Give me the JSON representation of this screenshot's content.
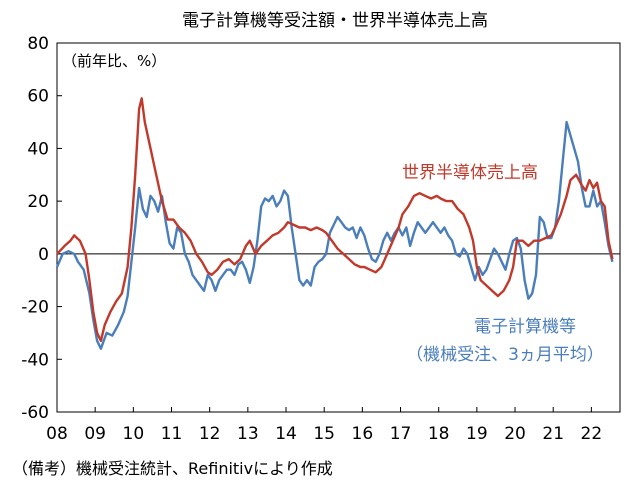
{
  "chart_data": {
    "type": "line",
    "title": "電子計算機等受注額・世界半導体売上高",
    "unit_label": "（前年比、%）",
    "source_note": "（備考）機械受注統計、Refinitivにより作成",
    "ylim": [
      -60,
      80
    ],
    "y_ticks": [
      "80",
      "60",
      "40",
      "20",
      "0",
      "-20",
      "-40",
      "-60"
    ],
    "y_tick_values": [
      80,
      60,
      40,
      20,
      0,
      -20,
      -40,
      -60
    ],
    "xlim": [
      2008.0,
      2022.75
    ],
    "x_ticks": [
      "08",
      "09",
      "10",
      "11",
      "12",
      "13",
      "14",
      "15",
      "16",
      "17",
      "18",
      "19",
      "20",
      "21",
      "22"
    ],
    "x_tick_values": [
      2008,
      2009,
      2010,
      2011,
      2012,
      2013,
      2014,
      2015,
      2016,
      2017,
      2018,
      2019,
      2020,
      2021,
      2022
    ],
    "grid": false,
    "series": [
      {
        "name": "電子計算機等",
        "label_lines": [
          "電子計算機等",
          "（機械受注、3ヵ月平均）"
        ],
        "color": "#4a7ebb",
        "points": [
          [
            2008.0,
            -5
          ],
          [
            2008.15,
            0
          ],
          [
            2008.3,
            1
          ],
          [
            2008.45,
            0
          ],
          [
            2008.55,
            -3
          ],
          [
            2008.7,
            -6
          ],
          [
            2008.85,
            -15
          ],
          [
            2008.95,
            -25
          ],
          [
            2009.05,
            -33
          ],
          [
            2009.15,
            -36
          ],
          [
            2009.3,
            -30
          ],
          [
            2009.45,
            -31
          ],
          [
            2009.6,
            -27
          ],
          [
            2009.75,
            -22
          ],
          [
            2009.85,
            -16
          ],
          [
            2009.95,
            -3
          ],
          [
            2010.05,
            10
          ],
          [
            2010.15,
            25
          ],
          [
            2010.25,
            17
          ],
          [
            2010.35,
            14
          ],
          [
            2010.45,
            22
          ],
          [
            2010.55,
            20
          ],
          [
            2010.65,
            16
          ],
          [
            2010.75,
            22
          ],
          [
            2010.85,
            12
          ],
          [
            2010.95,
            4
          ],
          [
            2011.05,
            2
          ],
          [
            2011.15,
            10
          ],
          [
            2011.25,
            8
          ],
          [
            2011.35,
            0
          ],
          [
            2011.45,
            -3
          ],
          [
            2011.55,
            -8
          ],
          [
            2011.65,
            -10
          ],
          [
            2011.75,
            -12
          ],
          [
            2011.85,
            -14
          ],
          [
            2011.95,
            -8
          ],
          [
            2012.05,
            -10
          ],
          [
            2012.15,
            -14
          ],
          [
            2012.25,
            -10
          ],
          [
            2012.35,
            -8
          ],
          [
            2012.45,
            -6
          ],
          [
            2012.55,
            -6
          ],
          [
            2012.65,
            -8
          ],
          [
            2012.75,
            -4
          ],
          [
            2012.85,
            -3
          ],
          [
            2012.95,
            -6
          ],
          [
            2013.05,
            -11
          ],
          [
            2013.15,
            -5
          ],
          [
            2013.25,
            5
          ],
          [
            2013.35,
            18
          ],
          [
            2013.45,
            21
          ],
          [
            2013.55,
            20
          ],
          [
            2013.65,
            22
          ],
          [
            2013.75,
            18
          ],
          [
            2013.85,
            20
          ],
          [
            2013.95,
            24
          ],
          [
            2014.05,
            22
          ],
          [
            2014.15,
            10
          ],
          [
            2014.25,
            0
          ],
          [
            2014.35,
            -10
          ],
          [
            2014.45,
            -12
          ],
          [
            2014.55,
            -10
          ],
          [
            2014.65,
            -12
          ],
          [
            2014.75,
            -5
          ],
          [
            2014.85,
            -3
          ],
          [
            2014.95,
            -2
          ],
          [
            2015.05,
            0
          ],
          [
            2015.15,
            8
          ],
          [
            2015.25,
            11
          ],
          [
            2015.35,
            14
          ],
          [
            2015.45,
            12
          ],
          [
            2015.55,
            10
          ],
          [
            2015.65,
            9
          ],
          [
            2015.75,
            10
          ],
          [
            2015.85,
            6
          ],
          [
            2015.95,
            10
          ],
          [
            2016.05,
            7
          ],
          [
            2016.15,
            2
          ],
          [
            2016.25,
            -2
          ],
          [
            2016.35,
            -3
          ],
          [
            2016.45,
            0
          ],
          [
            2016.55,
            5
          ],
          [
            2016.65,
            8
          ],
          [
            2016.75,
            5
          ],
          [
            2016.85,
            8
          ],
          [
            2016.95,
            10
          ],
          [
            2017.05,
            7
          ],
          [
            2017.15,
            10
          ],
          [
            2017.25,
            3
          ],
          [
            2017.35,
            8
          ],
          [
            2017.45,
            12
          ],
          [
            2017.55,
            10
          ],
          [
            2017.65,
            8
          ],
          [
            2017.75,
            10
          ],
          [
            2017.85,
            12
          ],
          [
            2017.95,
            10
          ],
          [
            2018.05,
            8
          ],
          [
            2018.15,
            10
          ],
          [
            2018.25,
            7
          ],
          [
            2018.35,
            5
          ],
          [
            2018.45,
            0
          ],
          [
            2018.55,
            -1
          ],
          [
            2018.65,
            2
          ],
          [
            2018.75,
            0
          ],
          [
            2018.85,
            -5
          ],
          [
            2018.95,
            -10
          ],
          [
            2019.05,
            -5
          ],
          [
            2019.15,
            -8
          ],
          [
            2019.25,
            -6
          ],
          [
            2019.35,
            -2
          ],
          [
            2019.45,
            2
          ],
          [
            2019.55,
            0
          ],
          [
            2019.65,
            -3
          ],
          [
            2019.75,
            -6
          ],
          [
            2019.85,
            0
          ],
          [
            2019.95,
            5
          ],
          [
            2020.05,
            6
          ],
          [
            2020.15,
            2
          ],
          [
            2020.25,
            -10
          ],
          [
            2020.35,
            -17
          ],
          [
            2020.45,
            -15
          ],
          [
            2020.55,
            -8
          ],
          [
            2020.65,
            14
          ],
          [
            2020.75,
            12
          ],
          [
            2020.85,
            6
          ],
          [
            2020.95,
            6
          ],
          [
            2021.05,
            10
          ],
          [
            2021.15,
            20
          ],
          [
            2021.25,
            35
          ],
          [
            2021.35,
            50
          ],
          [
            2021.45,
            45
          ],
          [
            2021.55,
            40
          ],
          [
            2021.65,
            35
          ],
          [
            2021.75,
            25
          ],
          [
            2021.85,
            18
          ],
          [
            2021.95,
            18
          ],
          [
            2022.05,
            24
          ],
          [
            2022.15,
            18
          ],
          [
            2022.25,
            20
          ],
          [
            2022.35,
            12
          ],
          [
            2022.45,
            3
          ],
          [
            2022.55,
            -3
          ]
        ]
      },
      {
        "name": "世界半導体売上高",
        "label_lines": [
          "世界半導体売上高"
        ],
        "color": "#c0392b",
        "points": [
          [
            2008.0,
            0
          ],
          [
            2008.2,
            3
          ],
          [
            2008.35,
            5
          ],
          [
            2008.45,
            7
          ],
          [
            2008.6,
            5
          ],
          [
            2008.75,
            0
          ],
          [
            2008.85,
            -10
          ],
          [
            2008.95,
            -22
          ],
          [
            2009.05,
            -30
          ],
          [
            2009.15,
            -33
          ],
          [
            2009.25,
            -27
          ],
          [
            2009.4,
            -22
          ],
          [
            2009.55,
            -18
          ],
          [
            2009.7,
            -15
          ],
          [
            2009.85,
            -5
          ],
          [
            2009.95,
            10
          ],
          [
            2010.05,
            30
          ],
          [
            2010.15,
            55
          ],
          [
            2010.22,
            59
          ],
          [
            2010.3,
            50
          ],
          [
            2010.45,
            40
          ],
          [
            2010.6,
            30
          ],
          [
            2010.75,
            20
          ],
          [
            2010.9,
            13
          ],
          [
            2011.05,
            13
          ],
          [
            2011.2,
            10
          ],
          [
            2011.35,
            8
          ],
          [
            2011.5,
            5
          ],
          [
            2011.65,
            0
          ],
          [
            2011.8,
            -3
          ],
          [
            2011.95,
            -7
          ],
          [
            2012.05,
            -8
          ],
          [
            2012.2,
            -6
          ],
          [
            2012.35,
            -3
          ],
          [
            2012.5,
            -2
          ],
          [
            2012.65,
            -4
          ],
          [
            2012.8,
            -2
          ],
          [
            2012.95,
            3
          ],
          [
            2013.05,
            5
          ],
          [
            2013.2,
            0
          ],
          [
            2013.35,
            3
          ],
          [
            2013.5,
            5
          ],
          [
            2013.65,
            7
          ],
          [
            2013.8,
            8
          ],
          [
            2013.95,
            10
          ],
          [
            2014.05,
            12
          ],
          [
            2014.2,
            11
          ],
          [
            2014.35,
            10
          ],
          [
            2014.5,
            10
          ],
          [
            2014.65,
            9
          ],
          [
            2014.8,
            10
          ],
          [
            2014.95,
            9
          ],
          [
            2015.05,
            8
          ],
          [
            2015.2,
            5
          ],
          [
            2015.35,
            2
          ],
          [
            2015.5,
            0
          ],
          [
            2015.65,
            -2
          ],
          [
            2015.8,
            -4
          ],
          [
            2015.95,
            -5
          ],
          [
            2016.05,
            -5
          ],
          [
            2016.2,
            -6
          ],
          [
            2016.35,
            -7
          ],
          [
            2016.5,
            -5
          ],
          [
            2016.65,
            0
          ],
          [
            2016.8,
            5
          ],
          [
            2016.95,
            10
          ],
          [
            2017.05,
            15
          ],
          [
            2017.2,
            18
          ],
          [
            2017.35,
            22
          ],
          [
            2017.5,
            23
          ],
          [
            2017.65,
            22
          ],
          [
            2017.8,
            21
          ],
          [
            2017.95,
            22
          ],
          [
            2018.05,
            21
          ],
          [
            2018.2,
            20
          ],
          [
            2018.35,
            20
          ],
          [
            2018.5,
            17
          ],
          [
            2018.65,
            15
          ],
          [
            2018.8,
            10
          ],
          [
            2018.9,
            5
          ],
          [
            2019.0,
            -5
          ],
          [
            2019.1,
            -10
          ],
          [
            2019.25,
            -12
          ],
          [
            2019.4,
            -14
          ],
          [
            2019.55,
            -16
          ],
          [
            2019.7,
            -14
          ],
          [
            2019.85,
            -10
          ],
          [
            2019.95,
            -5
          ],
          [
            2020.05,
            5
          ],
          [
            2020.2,
            5
          ],
          [
            2020.35,
            3
          ],
          [
            2020.5,
            5
          ],
          [
            2020.65,
            5
          ],
          [
            2020.8,
            6
          ],
          [
            2020.95,
            7
          ],
          [
            2021.05,
            10
          ],
          [
            2021.2,
            15
          ],
          [
            2021.35,
            22
          ],
          [
            2021.45,
            28
          ],
          [
            2021.6,
            30
          ],
          [
            2021.75,
            26
          ],
          [
            2021.85,
            24
          ],
          [
            2021.95,
            28
          ],
          [
            2022.05,
            25
          ],
          [
            2022.15,
            27
          ],
          [
            2022.25,
            20
          ],
          [
            2022.35,
            18
          ],
          [
            2022.45,
            5
          ],
          [
            2022.55,
            -2
          ]
        ]
      }
    ]
  }
}
